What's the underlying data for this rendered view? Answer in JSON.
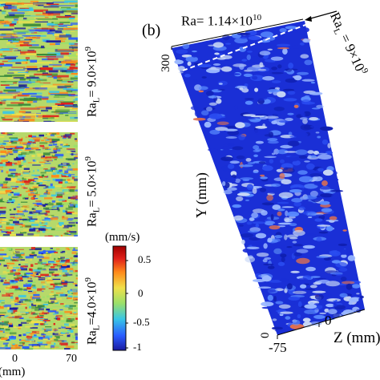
{
  "panel_a": {
    "strips": [
      {
        "label": "Ra",
        "sub": "L",
        "value": "= 9.0×10",
        "exp": "9"
      },
      {
        "label": "Ra",
        "sub": "L",
        "value": "= 5.0×10",
        "exp": "9"
      },
      {
        "label": "Ra",
        "sub": "L",
        "value": "=4.0×10",
        "exp": "9"
      }
    ],
    "x_ticks": [
      "0",
      "70"
    ],
    "x_unit": "(mm)"
  },
  "colorbar": {
    "unit": "(mm/s)",
    "ticks": [
      "0.5",
      "0",
      "-0.5",
      "-1"
    ],
    "colors": [
      "#1a1aa0",
      "#2a5cff",
      "#39c6e6",
      "#9ae06a",
      "#f0e04a",
      "#ff8a1a",
      "#e0201a",
      "#a00000"
    ]
  },
  "panel_b": {
    "tag": "(b)",
    "ra_top": {
      "label": "Ra= 1.14×10",
      "exp": "10"
    },
    "ra_side": {
      "label": "Ra",
      "sub": "L",
      "value": " = 9×10",
      "exp": "9"
    },
    "y_axis": {
      "label": "Y (mm)",
      "tick_top": "300",
      "tick_bottom": "0"
    },
    "z_axis": {
      "label": "Z (mm)",
      "tick_left": "-75",
      "tick_mid": "0"
    },
    "iso_color": "#1a2fd6"
  }
}
